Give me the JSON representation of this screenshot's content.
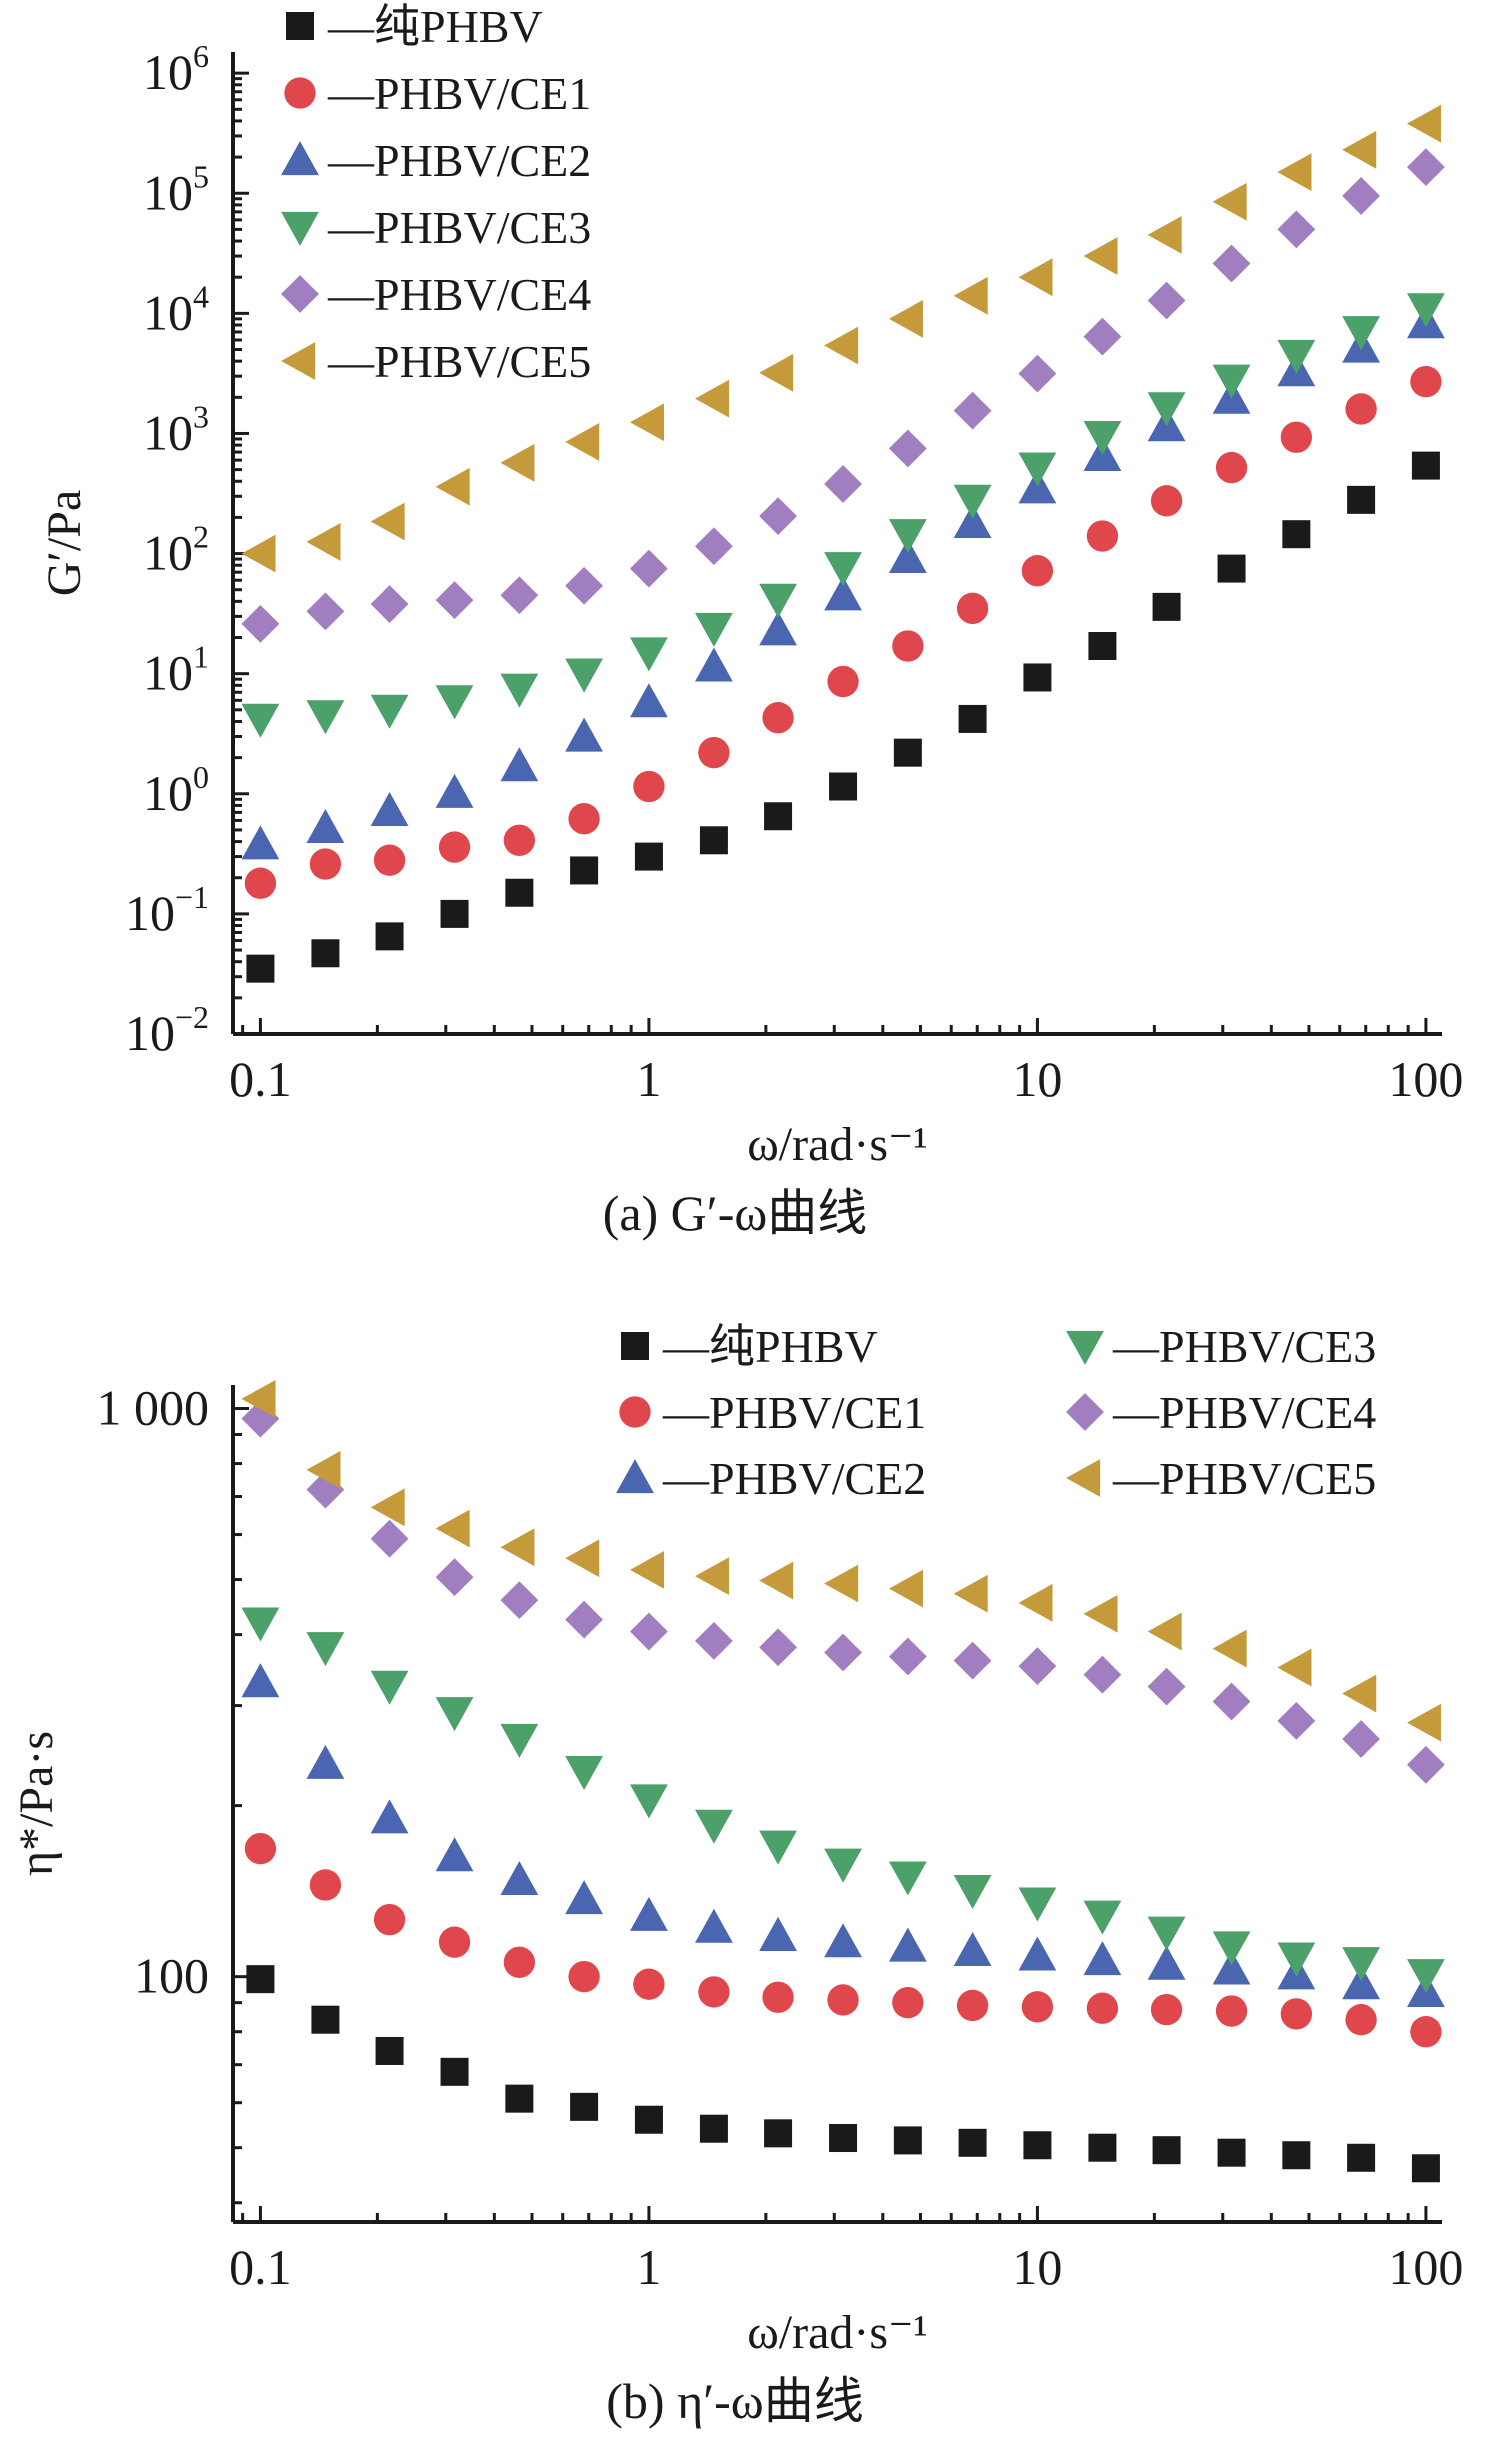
{
  "chart_data": [
    {
      "type": "scatter",
      "x_scale": "log",
      "y_scale": "log",
      "xlabel": "ω/rad·s⁻¹",
      "ylabel": "G′/Pa",
      "caption": "(a) G′-ω曲线",
      "xlim": [
        0.085,
        110
      ],
      "ylim": [
        0.01,
        1500000
      ],
      "x_ticks": [
        0.1,
        1,
        10,
        100
      ],
      "x_tick_labels": [
        "0.1",
        "1",
        "10",
        "100"
      ],
      "y_ticks": [
        0.01,
        0.1,
        1,
        10,
        100,
        1000,
        10000,
        100000,
        1000000
      ],
      "y_tick_labels": [
        {
          "base": "10",
          "exp": "−2"
        },
        {
          "base": "10",
          "exp": "−1"
        },
        {
          "base": "10",
          "exp": "0"
        },
        {
          "base": "10",
          "exp": "1"
        },
        {
          "base": "10",
          "exp": "2"
        },
        {
          "base": "10",
          "exp": "3"
        },
        {
          "base": "10",
          "exp": "4"
        },
        {
          "base": "10",
          "exp": "5"
        },
        {
          "base": "10",
          "exp": "6"
        }
      ],
      "legend_position": "top-left",
      "x": [
        0.1,
        0.147,
        0.215,
        0.316,
        0.464,
        0.681,
        1,
        1.47,
        2.15,
        3.16,
        4.64,
        6.81,
        10,
        14.7,
        21.5,
        31.6,
        46.4,
        68.1,
        100
      ],
      "series": [
        {
          "name": "—纯PHBV",
          "marker": "square",
          "color": "#1a1a1a",
          "values": [
            0.035,
            0.047,
            0.065,
            0.1,
            0.15,
            0.23,
            0.3,
            0.41,
            0.65,
            1.15,
            2.2,
            4.2,
            9.3,
            17,
            36,
            75,
            145,
            280,
            540
          ]
        },
        {
          "name": "—PHBV/CE1",
          "marker": "circle",
          "color": "#e0474c",
          "values": [
            0.18,
            0.26,
            0.28,
            0.36,
            0.41,
            0.62,
            1.15,
            2.2,
            4.3,
            8.6,
            17,
            35,
            72,
            140,
            275,
            520,
            930,
            1600,
            2700
          ]
        },
        {
          "name": "—PHBV/CE2",
          "marker": "triangle-up",
          "color": "#4a66b0",
          "values": [
            0.38,
            0.52,
            0.72,
            1.02,
            1.7,
            3.0,
            5.8,
            11.5,
            23,
            45,
            92,
            180,
            350,
            650,
            1150,
            1950,
            3300,
            5200,
            8300
          ]
        },
        {
          "name": "—PHBV/CE3",
          "marker": "triangle-down",
          "color": "#4ca06a",
          "values": [
            4.2,
            4.5,
            5.0,
            6.0,
            7.5,
            10,
            15,
            24,
            42,
            77,
            145,
            280,
            520,
            950,
            1650,
            2800,
            4500,
            7100,
            11000
          ]
        },
        {
          "name": "—PHBV/CE4",
          "marker": "diamond",
          "color": "#a07ec0",
          "values": [
            26,
            33,
            38,
            41,
            45,
            54,
            75,
            115,
            205,
            380,
            750,
            1550,
            3150,
            6400,
            12800,
            26000,
            50000,
            95000,
            165000
          ]
        },
        {
          "name": "—PHBV/CE5",
          "marker": "triangle-left",
          "color": "#c49a3a",
          "values": [
            100,
            125,
            185,
            360,
            570,
            850,
            1240,
            1950,
            3200,
            5400,
            9000,
            14000,
            20000,
            30000,
            45000,
            85000,
            150000,
            230000,
            380000
          ]
        }
      ]
    },
    {
      "type": "scatter",
      "x_scale": "log",
      "y_scale": "log",
      "xlabel": "ω/rad·s⁻¹",
      "ylabel": "η*/Pa·s",
      "caption": "(b) η′-ω曲线",
      "xlim": [
        0.085,
        110
      ],
      "ylim": [
        37,
        1100
      ],
      "x_ticks": [
        0.1,
        1,
        10,
        100
      ],
      "x_tick_labels": [
        "0.1",
        "1",
        "10",
        "100"
      ],
      "y_ticks": [
        100,
        1000
      ],
      "y_tick_labels": [
        {
          "base": "100",
          "exp": ""
        },
        {
          "base": "1 000",
          "exp": ""
        }
      ],
      "legend_position": "top-right",
      "x": [
        0.1,
        0.147,
        0.215,
        0.316,
        0.464,
        0.681,
        1,
        1.47,
        2.15,
        3.16,
        4.64,
        6.81,
        10,
        14.7,
        21.5,
        31.6,
        46.4,
        68.1,
        100
      ],
      "series": [
        {
          "name": "—纯PHBV",
          "marker": "square",
          "color": "#1a1a1a",
          "values": [
            99,
            84,
            74,
            68,
            61,
            59,
            56,
            54,
            53,
            52,
            51.5,
            51,
            50.5,
            50,
            49.5,
            49,
            48.5,
            48,
            46
          ]
        },
        {
          "name": "—PHBV/CE1",
          "marker": "circle",
          "color": "#e0474c",
          "values": [
            168,
            145,
            126,
            115,
            106,
            100,
            97,
            94,
            92,
            91,
            90,
            89,
            88.5,
            88,
            87.5,
            87,
            86,
            84,
            80
          ]
        },
        {
          "name": "—PHBV/CE2",
          "marker": "triangle-up",
          "color": "#4a66b0",
          "values": [
            330,
            237,
            190,
            163,
            148,
            137,
            128,
            122,
            118,
            115,
            113,
            111,
            109,
            107,
            105,
            103,
            101,
            97,
            94
          ]
        },
        {
          "name": "—PHBV/CE3",
          "marker": "triangle-down",
          "color": "#4ca06a",
          "values": [
            420,
            380,
            325,
            292,
            262,
            230,
            205,
            185,
            170,
            158,
            150,
            142,
            135,
            128,
            120,
            113,
            108,
            106,
            101
          ]
        },
        {
          "name": "—PHBV/CE4",
          "marker": "diamond",
          "color": "#a07ec0",
          "values": [
            960,
            720,
            590,
            505,
            460,
            425,
            405,
            390,
            380,
            372,
            366,
            360,
            352,
            340,
            324,
            305,
            282,
            262,
            236
          ]
        },
        {
          "name": "—PHBV/CE5",
          "marker": "triangle-left",
          "color": "#c49a3a",
          "values": [
            1040,
            780,
            670,
            615,
            570,
            545,
            520,
            507,
            498,
            492,
            482,
            472,
            455,
            435,
            405,
            378,
            350,
            315,
            280
          ]
        }
      ]
    }
  ]
}
